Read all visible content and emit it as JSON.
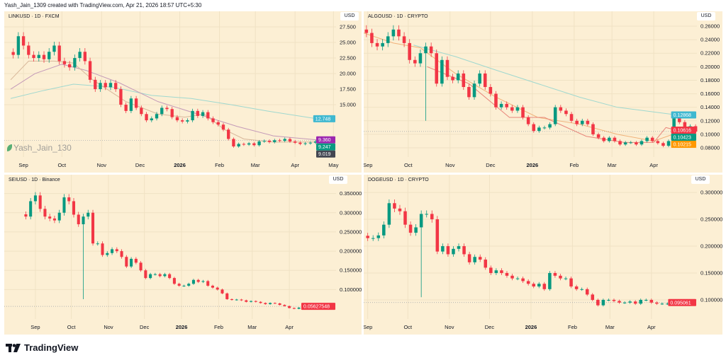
{
  "header": "Yash_Jain_1309 created with TradingView.com, Apr 21, 2026 18:57 UTC+5:30",
  "brand": "TradingView",
  "watermark": "Yash_Jain_130",
  "colors": {
    "background": "#fcefd4",
    "up": "#089981",
    "down": "#f23645",
    "grid": "#f0e2c4"
  },
  "chart_data": [
    {
      "type": "candlestick",
      "title": "LINKUSD · 1D · FXCM",
      "currency": "USD",
      "xlim": [
        "2025-08-17",
        "2026-05-03"
      ],
      "ylim": [
        6.6,
        30
      ],
      "yticks": [
        15,
        17.5,
        20,
        22.5,
        25,
        27.5
      ],
      "ytick_labels": [
        "15.000",
        "17.500",
        "20.000",
        "22.500",
        "25.000",
        "27.500"
      ],
      "xticks": [
        [
          "2025-09-01",
          "Sep"
        ],
        [
          "2025-10-01",
          "Oct"
        ],
        [
          "2025-11-01",
          "Nov"
        ],
        [
          "2025-12-01",
          "Dec"
        ],
        [
          "2026-01-01",
          "2026"
        ],
        [
          "2026-02-01",
          "Feb"
        ],
        [
          "2026-03-01",
          "Mar"
        ],
        [
          "2026-04-01",
          "Apr"
        ],
        [
          "2026-05-01",
          "May"
        ]
      ],
      "start": "2025-08-22",
      "interval_days": 4,
      "closes": [
        23,
        26,
        24.5,
        23,
        22.5,
        23,
        22.3,
        23.5,
        24.5,
        22,
        21.5,
        21,
        22.5,
        23.5,
        22,
        19,
        17.5,
        18.5,
        17.8,
        18.5,
        17.5,
        15,
        14,
        16,
        14.5,
        13.5,
        12.5,
        12.8,
        13.5,
        14.5,
        14.3,
        13,
        12.5,
        12.3,
        12.5,
        14,
        13.2,
        13.8,
        12.8,
        12.2,
        11.8,
        11,
        9.5,
        8.3,
        8.7,
        8.6,
        8.8,
        8.5,
        9.1,
        9.2,
        9,
        9.3,
        9.2,
        9.5,
        9.1,
        8.9,
        8.7,
        8.8,
        8.9,
        9.1,
        9.3,
        9.25
      ],
      "wick_lows": [],
      "moving_averages": [
        {
          "color": "#9fd8cf",
          "points": [
            [
              "2025-08-22",
              16
            ],
            [
              "2025-09-15",
              17.2
            ],
            [
              "2025-10-10",
              18.3
            ],
            [
              "2025-11-10",
              17.8
            ],
            [
              "2025-12-10",
              16.5
            ],
            [
              "2026-01-10",
              16
            ],
            [
              "2026-02-10",
              15
            ],
            [
              "2026-03-10",
              14
            ],
            [
              "2026-04-18",
              12.75
            ]
          ]
        },
        {
          "color": "#c49ab8",
          "points": [
            [
              "2025-08-22",
              17.5
            ],
            [
              "2025-09-10",
              20
            ],
            [
              "2025-10-01",
              21.5
            ],
            [
              "2025-10-20",
              20.5
            ],
            [
              "2025-11-15",
              18.5
            ],
            [
              "2025-12-15",
              15.5
            ],
            [
              "2026-01-15",
              13.5
            ],
            [
              "2026-02-15",
              11.5
            ],
            [
              "2026-03-15",
              10
            ],
            [
              "2026-04-18",
              9.36
            ]
          ]
        },
        {
          "color": "#d8b79a",
          "points": [
            [
              "2025-08-22",
              19
            ],
            [
              "2025-09-05",
              22
            ],
            [
              "2025-09-25",
              22
            ],
            [
              "2025-10-10",
              21.7
            ],
            [
              "2025-10-25",
              19
            ],
            [
              "2025-11-20",
              15.5
            ],
            [
              "2025-12-15",
              13.5
            ],
            [
              "2026-01-05",
              13
            ],
            [
              "2026-01-20",
              13.5
            ],
            [
              "2026-02-05",
              11
            ],
            [
              "2026-02-20",
              9.5
            ],
            [
              "2026-03-15",
              9
            ],
            [
              "2026-04-18",
              9.02
            ]
          ]
        }
      ],
      "last_price": 9.247,
      "price_tags": [
        {
          "value": 12.748,
          "label": "12.748",
          "color": "#3fb8d0"
        },
        {
          "value": 9.36,
          "label": "9.360",
          "color": "#9c27b0"
        },
        {
          "value": 9.247,
          "label": "9.247",
          "color": "#089981"
        },
        {
          "value": 9.019,
          "label": "9.019",
          "color": "#434651"
        }
      ]
    },
    {
      "type": "candlestick",
      "title": "ALGOUSD · 1D · CRYPTO",
      "currency": "USD",
      "xlim": [
        "2025-08-29",
        "2026-05-03"
      ],
      "ylim": [
        0.0664,
        0.282
      ],
      "yticks": [
        0.08,
        0.1,
        0.12,
        0.14,
        0.16,
        0.18,
        0.2,
        0.22,
        0.24,
        0.26
      ],
      "ytick_labels": [
        "0.08000",
        "0.10000",
        "0.12000",
        "0.14000",
        "0.16000",
        "0.18000",
        "0.20000",
        "0.22000",
        "0.24000",
        "0.26000"
      ],
      "xticks": [
        [
          "2025-09-01",
          "Sep"
        ],
        [
          "2025-10-01",
          "Oct"
        ],
        [
          "2025-11-01",
          "Nov"
        ],
        [
          "2025-12-01",
          "Dec"
        ],
        [
          "2026-01-01",
          "2026"
        ],
        [
          "2026-02-01",
          "Feb"
        ],
        [
          "2026-03-01",
          "Mar"
        ],
        [
          "2026-04-01",
          "Apr"
        ]
      ],
      "start": "2025-08-29",
      "interval_days": 4,
      "closes": [
        0.25,
        0.235,
        0.23,
        0.235,
        0.245,
        0.255,
        0.245,
        0.235,
        0.21,
        0.205,
        0.22,
        0.23,
        0.22,
        0.175,
        0.21,
        0.185,
        0.18,
        0.19,
        0.17,
        0.155,
        0.175,
        0.19,
        0.17,
        0.16,
        0.14,
        0.145,
        0.14,
        0.135,
        0.14,
        0.125,
        0.115,
        0.105,
        0.11,
        0.11,
        0.115,
        0.14,
        0.135,
        0.13,
        0.12,
        0.115,
        0.12,
        0.115,
        0.1,
        0.095,
        0.09,
        0.095,
        0.09,
        0.085,
        0.088,
        0.088,
        0.085,
        0.09,
        0.095,
        0.09,
        0.087,
        0.083,
        0.09,
        0.125,
        0.118,
        0.108,
        0.112,
        0.104
      ],
      "wick_lows": [
        [
          "2025-10-10",
          0.12
        ]
      ],
      "moving_averages": [
        {
          "color": "#9fd8cf",
          "points": [
            [
              "2025-10-05",
              0.232
            ],
            [
              "2025-11-05",
              0.215
            ],
            [
              "2025-12-05",
              0.195
            ],
            [
              "2026-01-05",
              0.175
            ],
            [
              "2026-02-05",
              0.155
            ],
            [
              "2026-03-05",
              0.14
            ],
            [
              "2026-04-18",
              0.1287
            ]
          ]
        },
        {
          "color": "#f0b27a",
          "points": [
            [
              "2025-08-29",
              0.25
            ],
            [
              "2025-09-20",
              0.235
            ],
            [
              "2025-10-10",
              0.228
            ],
            [
              "2025-11-05",
              0.19
            ],
            [
              "2025-12-05",
              0.155
            ],
            [
              "2026-01-05",
              0.125
            ],
            [
              "2026-02-05",
              0.115
            ],
            [
              "2026-03-05",
              0.1
            ],
            [
              "2026-04-01",
              0.09
            ],
            [
              "2026-04-18",
              0.102
            ]
          ]
        },
        {
          "color": "#e8857a",
          "points": [
            [
              "2025-10-15",
              0.2
            ],
            [
              "2025-11-15",
              0.175
            ],
            [
              "2025-12-15",
              0.125
            ],
            [
              "2026-01-10",
              0.125
            ],
            [
              "2026-02-10",
              0.097
            ],
            [
              "2026-03-10",
              0.088
            ],
            [
              "2026-04-01",
              0.088
            ],
            [
              "2026-04-10",
              0.11
            ],
            [
              "2026-04-18",
              0.106
            ]
          ]
        }
      ],
      "last_price": 0.10423,
      "price_tags": [
        {
          "value": 0.12868,
          "label": "0.12868",
          "color": "#3fb8d0"
        },
        {
          "value": 0.10616,
          "label": "0.10616",
          "color": "#f23645"
        },
        {
          "value": 0.10423,
          "label": "0.10423",
          "color": "#089981"
        },
        {
          "value": 0.10215,
          "label": "0.10215",
          "color": "#ff9800"
        }
      ]
    },
    {
      "type": "candlestick",
      "title": "SEIUSD · 1D · Binance",
      "currency": "USD",
      "xlim": [
        "2025-08-06",
        "2026-05-10"
      ],
      "ylim": [
        0.0234,
        0.399
      ],
      "yticks": [
        0.1,
        0.15,
        0.2,
        0.25,
        0.3,
        0.35
      ],
      "ytick_labels": [
        "0.10000000",
        "0.15000000",
        "0.20000000",
        "0.25000000",
        "0.30000000",
        "0.35000000"
      ],
      "xticks": [
        [
          "2025-09-01",
          "Sep"
        ],
        [
          "2025-10-01",
          "Oct"
        ],
        [
          "2025-11-01",
          "Nov"
        ],
        [
          "2025-12-01",
          "Dec"
        ],
        [
          "2026-01-01",
          "2026"
        ],
        [
          "2026-02-01",
          "Feb"
        ],
        [
          "2026-03-01",
          "Mar"
        ],
        [
          "2026-04-01",
          "Apr"
        ]
      ],
      "start": "2025-08-22",
      "interval_days": 4,
      "closes": [
        0.29,
        0.33,
        0.345,
        0.31,
        0.29,
        0.285,
        0.28,
        0.3,
        0.34,
        0.33,
        0.295,
        0.27,
        0.29,
        0.3,
        0.22,
        0.22,
        0.19,
        0.195,
        0.205,
        0.2,
        0.185,
        0.16,
        0.18,
        0.17,
        0.15,
        0.13,
        0.14,
        0.14,
        0.135,
        0.14,
        0.13,
        0.115,
        0.11,
        0.11,
        0.115,
        0.125,
        0.12,
        0.122,
        0.11,
        0.105,
        0.1,
        0.09,
        0.075,
        0.073,
        0.074,
        0.072,
        0.068,
        0.07,
        0.068,
        0.065,
        0.062,
        0.065,
        0.064,
        0.06,
        0.057,
        0.052,
        0.05,
        0.053,
        0.055,
        0.056,
        0.057,
        0.0563
      ],
      "wick_lows": [
        [
          "2025-10-10",
          0.075
        ]
      ],
      "moving_averages": [],
      "last_price": 0.05627548,
      "price_tags": [
        {
          "value": 0.05627548,
          "label": "0.05627548",
          "color": "#f23645"
        }
      ]
    },
    {
      "type": "candlestick",
      "title": "DOGEUSD · 1D · CRYPTO",
      "currency": "USD",
      "xlim": [
        "2025-08-29",
        "2026-05-05"
      ],
      "ylim": [
        0.0645,
        0.333
      ],
      "yticks": [
        0.1,
        0.15,
        0.2,
        0.25,
        0.3
      ],
      "ytick_labels": [
        "0.100000",
        "0.150000",
        "0.200000",
        "0.250000",
        "0.300000"
      ],
      "xticks": [
        [
          "2025-09-01",
          "Sep"
        ],
        [
          "2025-10-01",
          "Oct"
        ],
        [
          "2025-11-01",
          "Nov"
        ],
        [
          "2025-12-01",
          "Dec"
        ],
        [
          "2026-01-01",
          "2026"
        ],
        [
          "2026-02-01",
          "Feb"
        ],
        [
          "2026-03-01",
          "Mar"
        ],
        [
          "2026-04-01",
          "Apr"
        ]
      ],
      "start": "2025-08-30",
      "interval_days": 4,
      "closes": [
        0.215,
        0.215,
        0.22,
        0.24,
        0.28,
        0.27,
        0.265,
        0.24,
        0.225,
        0.235,
        0.26,
        0.26,
        0.25,
        0.19,
        0.2,
        0.185,
        0.195,
        0.2,
        0.185,
        0.17,
        0.18,
        0.175,
        0.16,
        0.15,
        0.155,
        0.15,
        0.145,
        0.14,
        0.14,
        0.135,
        0.13,
        0.125,
        0.13,
        0.12,
        0.15,
        0.145,
        0.14,
        0.14,
        0.125,
        0.12,
        0.12,
        0.11,
        0.1,
        0.09,
        0.1,
        0.1,
        0.098,
        0.095,
        0.095,
        0.097,
        0.093,
        0.1,
        0.1,
        0.095,
        0.093,
        0.093,
        0.093,
        0.093,
        0.095,
        0.097,
        0.095
      ],
      "wick_lows": [
        [
          "2025-10-10",
          0.105
        ]
      ],
      "moving_averages": [],
      "last_price": 0.095061,
      "price_tags": [
        {
          "value": 0.095061,
          "label": "0.095061",
          "color": "#f23645"
        }
      ]
    }
  ]
}
